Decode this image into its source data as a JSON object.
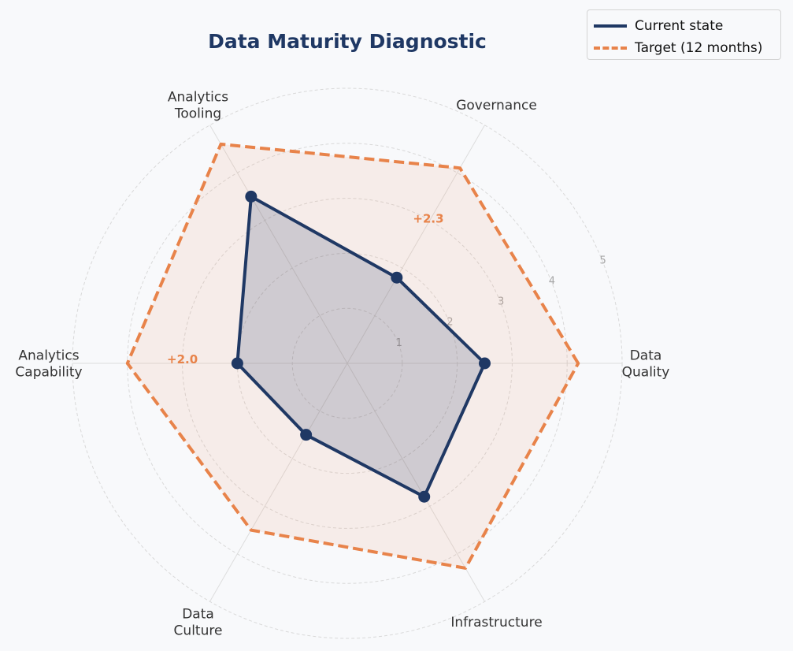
{
  "chart_data": {
    "type": "radar",
    "title": "Data Maturity Diagnostic",
    "axes": [
      {
        "label": [
          "Data",
          "Quality"
        ]
      },
      {
        "label": [
          "Governance"
        ]
      },
      {
        "label": [
          "Analytics",
          "Tooling"
        ]
      },
      {
        "label": [
          "Analytics",
          "Capability"
        ]
      },
      {
        "label": [
          "Data",
          "Culture"
        ]
      },
      {
        "label": [
          "Infrastructure"
        ]
      }
    ],
    "rlim": [
      0,
      5
    ],
    "ring_ticks": [
      "1",
      "2",
      "3",
      "4",
      "5"
    ],
    "grid": true,
    "legend_position": "top-right",
    "series": [
      {
        "name": "Current state",
        "values": [
          2.5,
          1.8,
          3.5,
          2.0,
          1.5,
          2.8
        ],
        "color": "#1f3864",
        "style": "solid",
        "markers": true,
        "fill": "#1f3864"
      },
      {
        "name": "Target (12 months)",
        "values": [
          4.2,
          4.1,
          4.6,
          4.0,
          3.5,
          4.3
        ],
        "color": "#e8834a",
        "style": "dashed",
        "markers": false,
        "fill": "#e8834a"
      }
    ],
    "annotations": [
      {
        "text": "+2.3",
        "axis": 1,
        "r": 2.95,
        "color": "#e8834a"
      },
      {
        "text": "+2.0",
        "axis": 3,
        "r": 3.0,
        "color": "#e8834a"
      }
    ]
  }
}
